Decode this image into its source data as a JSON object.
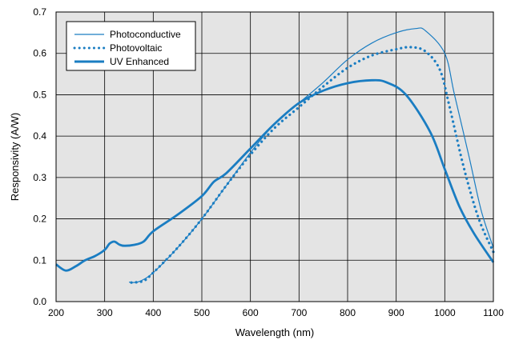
{
  "chart_data": {
    "type": "line",
    "xlabel": "Wavelength (nm)",
    "ylabel": "Responsivity (A/W)",
    "xlim": [
      200,
      1100
    ],
    "ylim": [
      0,
      0.7
    ],
    "xticks": [
      200,
      300,
      400,
      500,
      600,
      700,
      800,
      900,
      1000,
      1100
    ],
    "yticks": [
      0.0,
      0.1,
      0.2,
      0.3,
      0.4,
      0.5,
      0.6,
      0.7
    ],
    "xtick_labels": [
      "200",
      "300",
      "400",
      "500",
      "600",
      "700",
      "800",
      "900",
      "1000",
      "1100"
    ],
    "ytick_labels": [
      "0.0",
      "0.1",
      "0.2",
      "0.3",
      "0.4",
      "0.5",
      "0.6",
      "0.7"
    ],
    "grid": true,
    "legend_position": "top-left",
    "plot_background": "#e4e4e4",
    "series_color": "#1a7dc2",
    "series": [
      {
        "name": "Photoconductive",
        "style": "thin-solid",
        "x": [
          350,
          370,
          400,
          450,
          500,
          550,
          600,
          650,
          700,
          750,
          800,
          850,
          900,
          940,
          960,
          1000,
          1020,
          1050,
          1075,
          1100
        ],
        "y": [
          0.047,
          0.048,
          0.07,
          0.13,
          0.2,
          0.28,
          0.36,
          0.43,
          0.48,
          0.53,
          0.585,
          0.625,
          0.65,
          0.66,
          0.655,
          0.6,
          0.5,
          0.35,
          0.22,
          0.13
        ]
      },
      {
        "name": "Photovoltaic",
        "style": "dotted",
        "x": [
          355,
          380,
          400,
          450,
          500,
          550,
          600,
          650,
          700,
          750,
          800,
          850,
          900,
          930,
          960,
          990,
          1010,
          1040,
          1070,
          1100
        ],
        "y": [
          0.046,
          0.05,
          0.07,
          0.13,
          0.2,
          0.28,
          0.355,
          0.42,
          0.47,
          0.52,
          0.565,
          0.595,
          0.61,
          0.615,
          0.605,
          0.56,
          0.47,
          0.32,
          0.2,
          0.12
        ]
      },
      {
        "name": "UV Enhanced",
        "style": "thick-solid",
        "x": [
          200,
          220,
          240,
          260,
          280,
          300,
          310,
          320,
          330,
          340,
          360,
          380,
          400,
          450,
          500,
          525,
          550,
          600,
          650,
          700,
          750,
          800,
          850,
          880,
          920,
          970,
          1000,
          1030,
          1060,
          1100
        ],
        "y": [
          0.09,
          0.075,
          0.085,
          0.1,
          0.11,
          0.125,
          0.14,
          0.145,
          0.138,
          0.135,
          0.137,
          0.145,
          0.17,
          0.21,
          0.255,
          0.29,
          0.31,
          0.37,
          0.43,
          0.48,
          0.51,
          0.528,
          0.535,
          0.53,
          0.5,
          0.41,
          0.32,
          0.23,
          0.165,
          0.095
        ]
      }
    ]
  }
}
